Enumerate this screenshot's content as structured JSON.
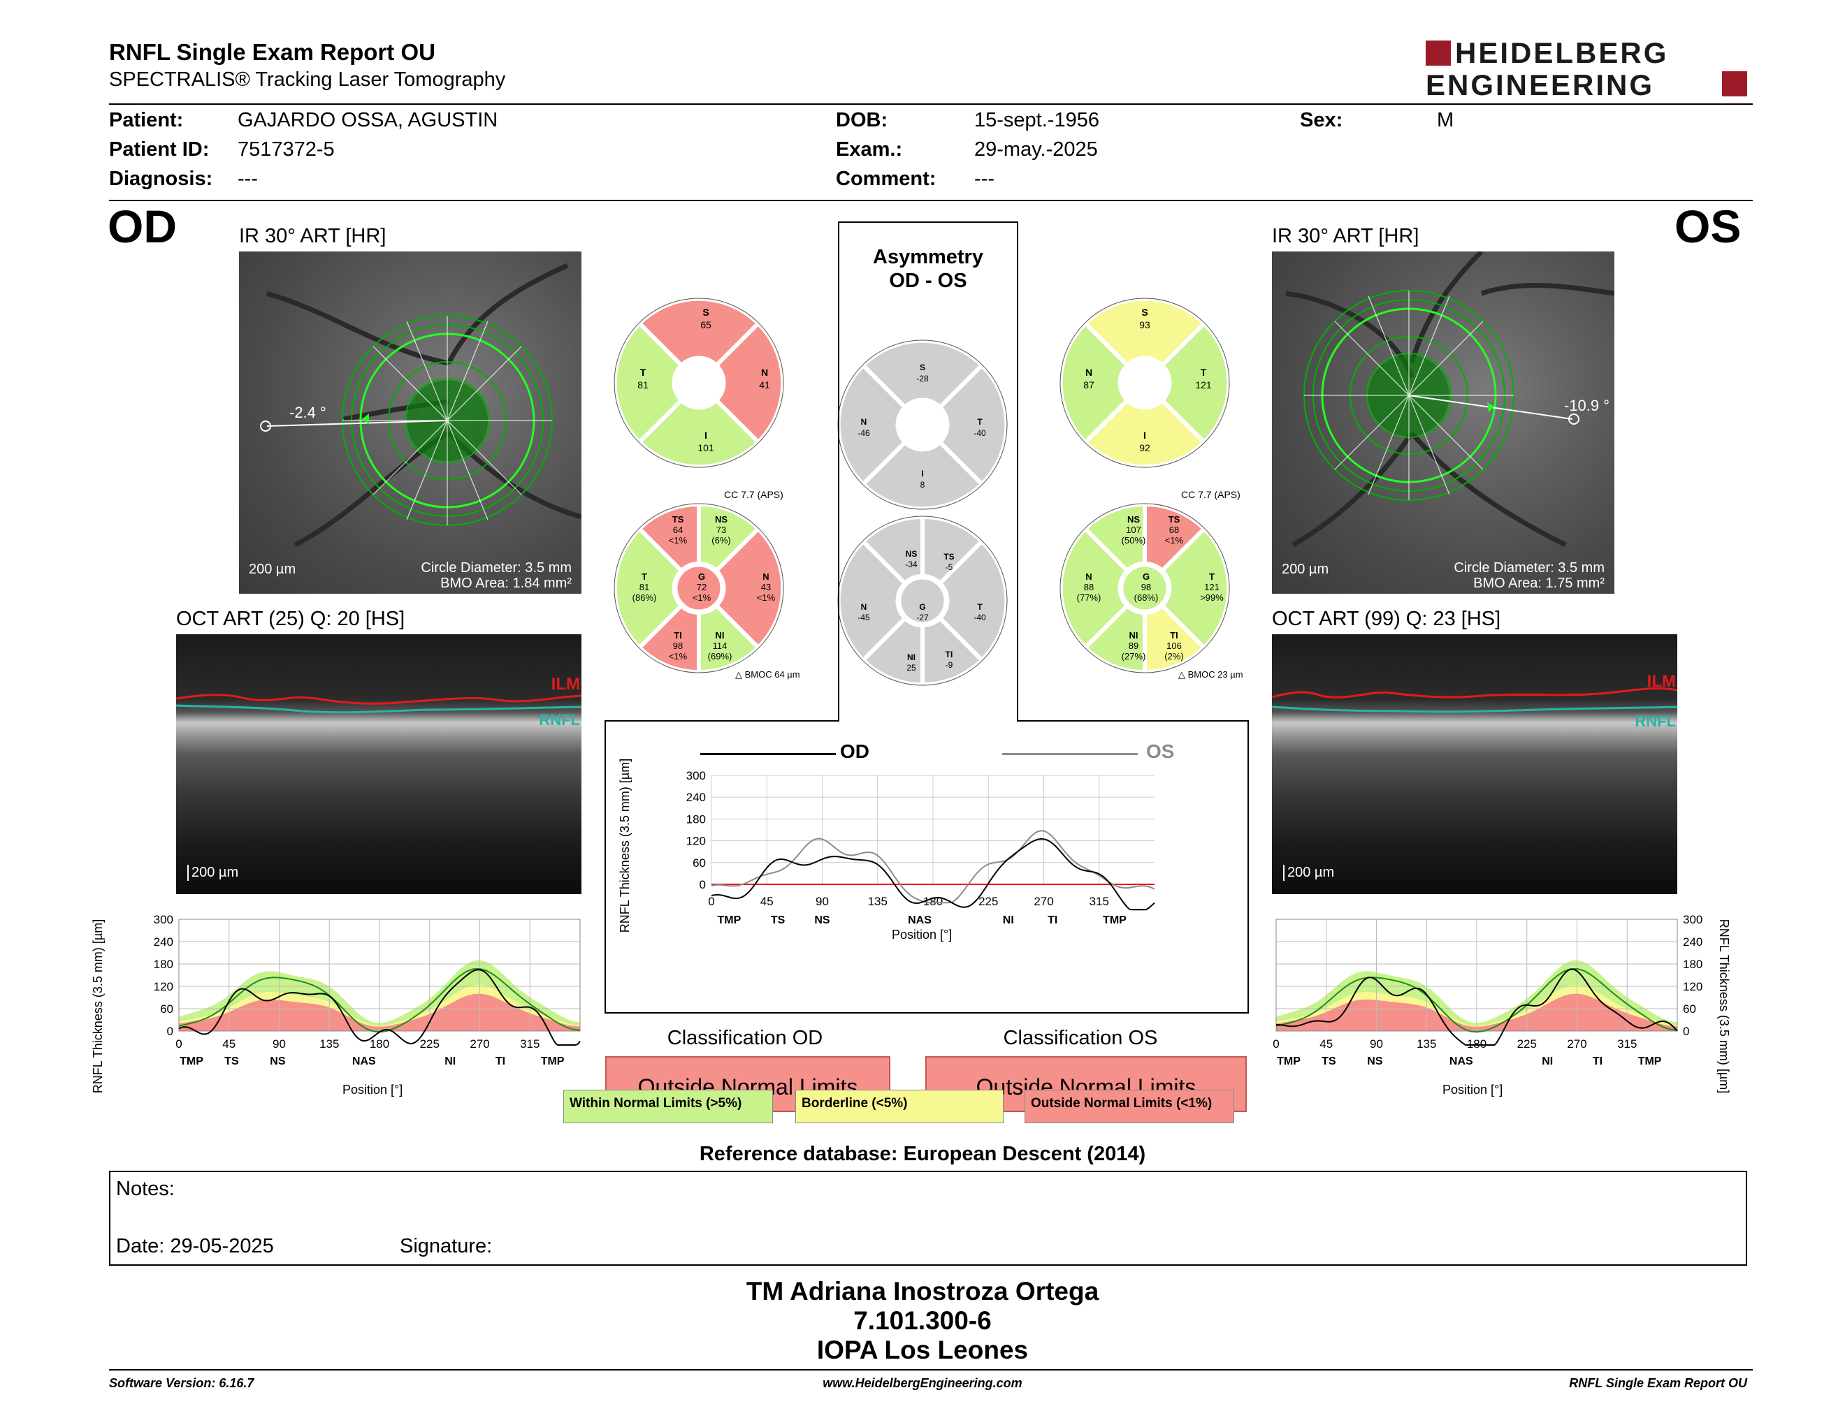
{
  "header": {
    "title": "RNFL Single Exam Report OU",
    "subtitle": "SPECTRALIS® Tracking Laser Tomography",
    "logo_line1": "HEIDELBERG",
    "logo_line2": "ENGINEERING"
  },
  "patient": {
    "patient_label": "Patient:",
    "patient_value": "GAJARDO OSSA, AGUSTIN",
    "id_label": "Patient ID:",
    "id_value": "7517372-5",
    "diagnosis_label": "Diagnosis:",
    "diagnosis_value": "---",
    "dob_label": "DOB:",
    "dob_value": "15-sept.-1956",
    "exam_label": "Exam.:",
    "exam_value": "29-may.-2025",
    "comment_label": "Comment:",
    "comment_value": "---",
    "sex_label": "Sex:",
    "sex_value": "M"
  },
  "od": {
    "eye": "OD",
    "ir_title": "IR 30° ART [HR]",
    "angle": "-2.4 °",
    "scale": "200 µm",
    "circle_diameter": "Circle Diameter: 3.5 mm",
    "bmo_area": "BMO Area: 1.84 mm²",
    "oct_title": "OCT ART (25) Q: 20 [HS]",
    "oct_scale": "200 µm",
    "ilm": "ILM",
    "rnfl": "RNFL",
    "cc": "CC 7.7 (APS)",
    "bmoc": "BMOC 64 µm",
    "quad": {
      "S": "65",
      "N": "41",
      "I": "101",
      "T": "81"
    },
    "sectors": {
      "TS": [
        "TS",
        "64",
        "<1%"
      ],
      "NS": [
        "NS",
        "73",
        "(6%)"
      ],
      "N": [
        "N",
        "43",
        "<1%"
      ],
      "NI": [
        "NI",
        "114",
        "(69%)"
      ],
      "TI": [
        "TI",
        "98",
        "<1%"
      ],
      "T": [
        "T",
        "81",
        "(86%)"
      ],
      "G": [
        "G",
        "72",
        "<1%"
      ]
    }
  },
  "os": {
    "eye": "OS",
    "ir_title": "IR 30° ART [HR]",
    "angle": "-10.9 °",
    "scale": "200 µm",
    "circle_diameter": "Circle Diameter: 3.5 mm",
    "bmo_area": "BMO Area: 1.75 mm²",
    "oct_title": "OCT ART (99) Q: 23 [HS]",
    "oct_scale": "200 µm",
    "ilm": "ILM",
    "rnfl": "RNFL",
    "cc": "CC 7.7 (APS)",
    "bmoc": "BMOC 23 µm",
    "quad": {
      "S": "93",
      "T": "121",
      "I": "92",
      "N": "87"
    },
    "sectors": {
      "NS": [
        "NS",
        "107",
        "(50%)"
      ],
      "TS": [
        "TS",
        "68",
        "<1%"
      ],
      "T": [
        "T",
        "121",
        ">99%"
      ],
      "TI": [
        "TI",
        "106",
        "(2%)"
      ],
      "NI": [
        "NI",
        "89",
        "(27%)"
      ],
      "N": [
        "N",
        "88",
        "(77%)"
      ],
      "G": [
        "G",
        "98",
        "(68%)"
      ]
    }
  },
  "asymmetry": {
    "title1": "Asymmetry",
    "title2": "OD - OS",
    "quad": {
      "S": "-28",
      "N": "-46",
      "T": "-40",
      "I": "8"
    },
    "sectors": {
      "NS": "-34",
      "TS": "-5",
      "N": "-45",
      "G": "-27",
      "T": "-40",
      "NI": "25",
      "TI": "-9"
    }
  },
  "colors": {
    "normal": "#c8f28c",
    "borderline": "#f8f892",
    "outside": "#f6908a",
    "asym": "#cfcfcf",
    "ring": "#00c000",
    "ilm": "#e21b1b",
    "rnfl": "#2ab3a8"
  },
  "plots": {
    "ylabel": "RNFL Thickness (3.5 mm) [µm]",
    "xlabel": "Position [°]",
    "yticks": [
      "300",
      "240",
      "180",
      "120",
      "60",
      "0"
    ],
    "yticks_comp": [
      "300",
      "240",
      "180",
      "120",
      "60",
      "0"
    ],
    "xticks": [
      "0",
      "45",
      "90",
      "135",
      "180",
      "225",
      "270",
      "315"
    ],
    "sectors": [
      "TMP",
      "TS",
      "NS",
      "NAS",
      "NI",
      "TI",
      "TMP"
    ],
    "comp_od": "OD",
    "comp_os": "OS"
  },
  "classification": {
    "od_title": "Classification OD",
    "os_title": "Classification OS",
    "od_value": "Outside Normal Limits",
    "os_value": "Outside Normal Limits",
    "legend_normal": "Within Normal Limits (>5%)",
    "legend_borderline": "Borderline (<5%)",
    "legend_outside": "Outside Normal Limits (<1%)"
  },
  "reference": "Reference database: European Descent (2014)",
  "notes": {
    "notes_label": "Notes:",
    "date_label": "Date: 29-05-2025",
    "signature_label": "Signature:"
  },
  "signature": {
    "name": "TM Adriana Inostroza Ortega",
    "rut": "7.101.300-6",
    "clinic": "IOPA Los Leones"
  },
  "footer": {
    "software": "Software Version: 6.16.7",
    "website": "www.HeidelbergEngineering.com",
    "report": "RNFL Single Exam Report OU"
  }
}
